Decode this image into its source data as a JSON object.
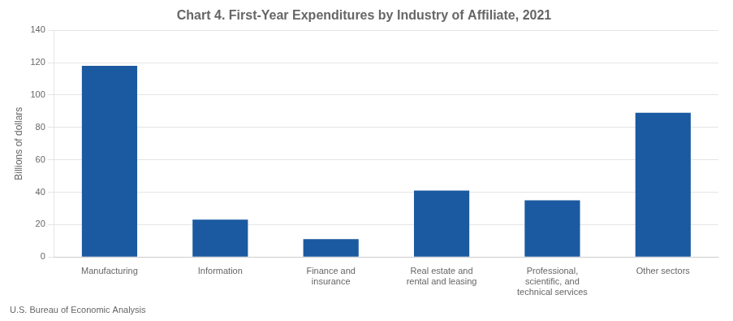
{
  "chart_data": {
    "type": "bar",
    "title": "Chart 4. First-Year Expenditures by Industry of Affiliate, 2021",
    "ylabel": "Billions of dollars",
    "footnote": "U.S. Bureau of Economic Analysis",
    "categories": [
      "Manufacturing",
      "Information",
      "Finance and\ninsurance",
      "Real estate and\nrental and leasing",
      "Professional,\nscientific, and\ntechnical services",
      "Other sectors"
    ],
    "values": [
      118,
      23,
      11,
      41,
      35,
      89
    ],
    "color": "#1B5AA0",
    "ylim": [
      0,
      140
    ],
    "yticks": [
      0,
      20,
      40,
      60,
      80,
      100,
      120,
      140
    ],
    "grid": true
  }
}
